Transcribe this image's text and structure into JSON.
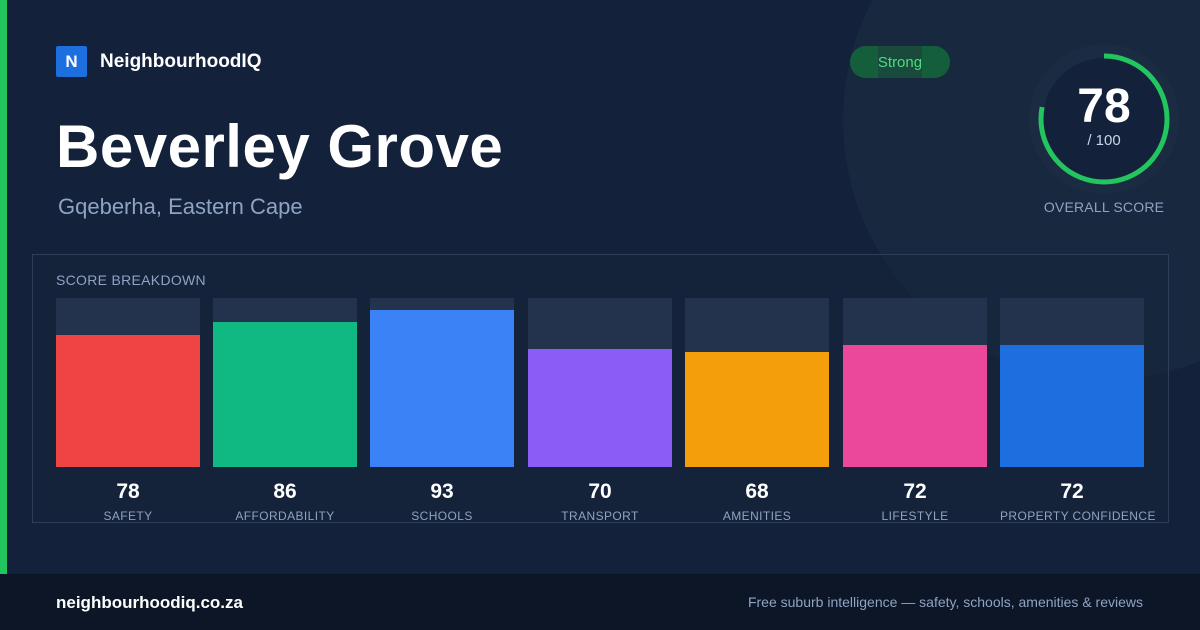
{
  "brand": {
    "logo_letter": "N",
    "name": "NeighbourhoodIQ"
  },
  "suburb": {
    "name": "Beverley Grove",
    "location": "Gqeberha, Eastern Cape"
  },
  "badge": {
    "label": "Strong"
  },
  "overall_score": {
    "value": "78",
    "max": "/ 100",
    "label": "OVERALL SCORE",
    "fraction": 0.78
  },
  "breakdown": {
    "title": "SCORE BREAKDOWN",
    "bars": [
      {
        "value": "78",
        "label": "SAFETY",
        "fill": 0.78,
        "color": "#ef4444"
      },
      {
        "value": "86",
        "label": "AFFORDABILITY",
        "fill": 0.86,
        "color": "#10b981"
      },
      {
        "value": "93",
        "label": "SCHOOLS",
        "fill": 0.93,
        "color": "#3b82f6"
      },
      {
        "value": "70",
        "label": "TRANSPORT",
        "fill": 0.7,
        "color": "#8b5cf6"
      },
      {
        "value": "68",
        "label": "AMENITIES",
        "fill": 0.68,
        "color": "#f59e0b"
      },
      {
        "value": "72",
        "label": "LIFESTYLE",
        "fill": 0.72,
        "color": "#ec4899"
      },
      {
        "value": "72",
        "label": "PROPERTY CONFIDENCE",
        "fill": 0.72,
        "color": "#1d6fe0"
      }
    ]
  },
  "footer": {
    "url": "neighbourhoodiq.co.za",
    "tagline": "Free suburb intelligence — safety, schools, amenities & reviews"
  },
  "colors": {
    "accent": "#22c55e",
    "background": "#13213a",
    "brand_blue": "#1d6fe0"
  }
}
